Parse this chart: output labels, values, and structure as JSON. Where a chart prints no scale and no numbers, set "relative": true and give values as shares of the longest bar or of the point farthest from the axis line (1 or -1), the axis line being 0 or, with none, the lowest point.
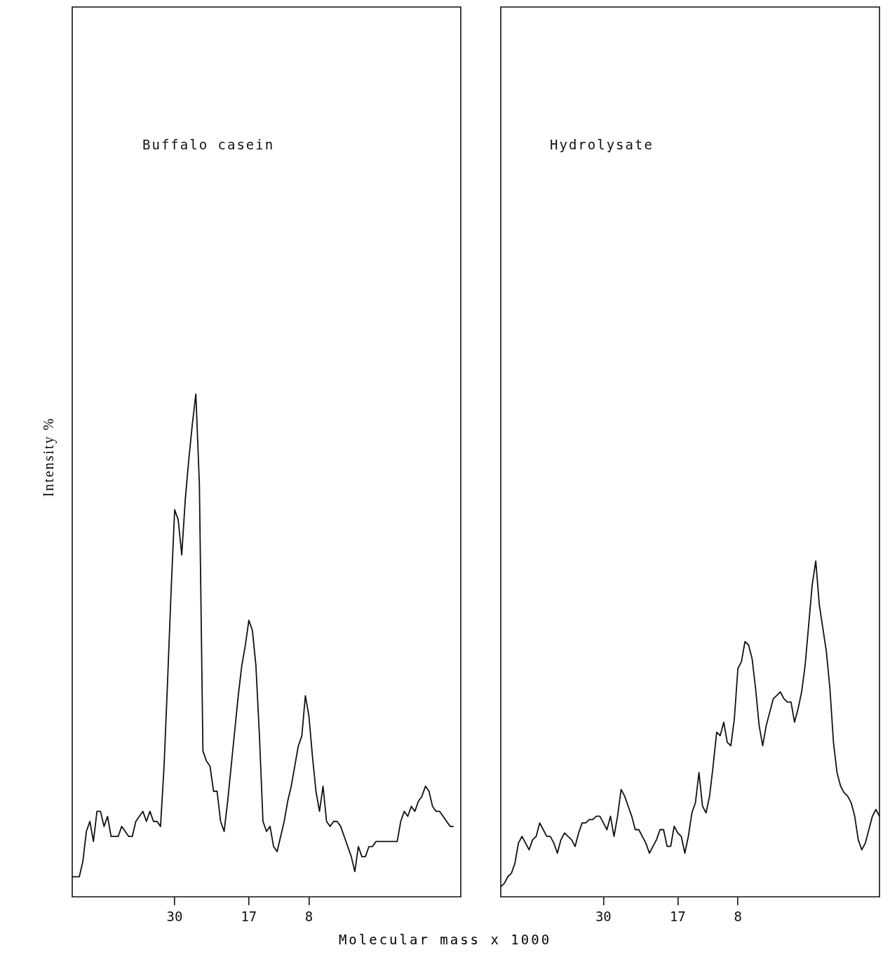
{
  "chart_data": [
    {
      "type": "line",
      "title": "Buffalo casein",
      "ylabel": "Intensity %",
      "xlabel": "Molecular mass x 1000",
      "relative": true,
      "marker": "none",
      "categories": [
        null,
        null,
        null,
        null,
        null,
        null,
        null,
        null,
        null,
        null,
        null,
        null,
        null,
        null,
        null,
        null,
        null,
        null,
        null,
        null,
        null,
        null,
        null,
        null,
        null,
        null,
        null,
        null,
        null,
        "30",
        null,
        null,
        null,
        null,
        null,
        null,
        null,
        null,
        null,
        null,
        null,
        null,
        null,
        null,
        null,
        null,
        null,
        null,
        null,
        null,
        "17",
        null,
        null,
        null,
        null,
        null,
        null,
        null,
        null,
        null,
        null,
        null,
        null,
        null,
        null,
        null,
        null,
        "8",
        null,
        null,
        null,
        null,
        null,
        null,
        null,
        null,
        null,
        null,
        null,
        null,
        null,
        null,
        null,
        null,
        null,
        null,
        null,
        null,
        null,
        null,
        null,
        null,
        null,
        null,
        null,
        null,
        null,
        null,
        null,
        null,
        null,
        null,
        null,
        null,
        null,
        null,
        null,
        null,
        null,
        null,
        null
      ],
      "series": [
        {
          "color": "#111111",
          "values": [
            0.04,
            0.04,
            0.04,
            0.07,
            0.13,
            0.15,
            0.11,
            0.17,
            0.17,
            0.14,
            0.16,
            0.12,
            0.12,
            0.12,
            0.14,
            0.13,
            0.12,
            0.12,
            0.15,
            0.16,
            0.17,
            0.15,
            0.17,
            0.15,
            0.15,
            0.14,
            0.26,
            0.43,
            0.61,
            0.77,
            0.75,
            0.68,
            0.79,
            0.87,
            0.94,
            1,
            0.82,
            0.29,
            0.27,
            0.26,
            0.21,
            0.21,
            0.15,
            0.13,
            0.19,
            0.26,
            0.33,
            0.4,
            0.46,
            0.5,
            0.55,
            0.53,
            0.46,
            0.32,
            0.15,
            0.13,
            0.14,
            0.1,
            0.09,
            0.12,
            0.15,
            0.19,
            0.22,
            0.26,
            0.3,
            0.32,
            0.4,
            0.36,
            0.28,
            0.21,
            0.17,
            0.22,
            0.15,
            0.14,
            0.15,
            0.15,
            0.14,
            0.12,
            0.1,
            0.08,
            0.05,
            0.1,
            0.08,
            0.08,
            0.1,
            0.1,
            0.11,
            0.11,
            0.11,
            0.11,
            0.11,
            0.11,
            0.11,
            0.15,
            0.17,
            0.16,
            0.18,
            0.17,
            0.19,
            0.2,
            0.22,
            0.21,
            0.18,
            0.17,
            0.17,
            0.16,
            0.15,
            0.14,
            0.14,
            null,
            null
          ]
        }
      ]
    },
    {
      "type": "line",
      "title": "Hydrolysate",
      "relative": true,
      "marker": "none",
      "categories": [
        null,
        null,
        null,
        null,
        null,
        null,
        null,
        null,
        null,
        null,
        null,
        null,
        null,
        null,
        null,
        null,
        null,
        null,
        null,
        null,
        null,
        null,
        null,
        null,
        null,
        null,
        null,
        null,
        null,
        "30",
        null,
        null,
        null,
        null,
        null,
        null,
        null,
        null,
        null,
        null,
        null,
        null,
        null,
        null,
        null,
        null,
        null,
        null,
        null,
        null,
        "17",
        null,
        null,
        null,
        null,
        null,
        null,
        null,
        null,
        null,
        null,
        null,
        null,
        null,
        null,
        null,
        null,
        "8",
        null,
        null,
        null,
        null,
        null,
        null,
        null,
        null,
        null,
        null,
        null,
        null,
        null,
        null,
        null,
        null,
        null,
        null,
        null,
        null,
        null,
        null,
        null,
        null,
        null,
        null,
        null,
        null,
        null,
        null,
        null,
        null,
        null,
        null,
        null,
        null,
        null,
        null,
        null,
        null
      ],
      "series": [
        {
          "color": "#111111",
          "values": [
            0.03,
            0.04,
            0.06,
            0.07,
            0.1,
            0.16,
            0.18,
            0.16,
            0.14,
            0.17,
            0.18,
            0.22,
            0.2,
            0.18,
            0.18,
            0.16,
            0.13,
            0.17,
            0.19,
            0.18,
            0.17,
            0.15,
            0.19,
            0.22,
            0.22,
            0.23,
            0.23,
            0.24,
            0.24,
            0.22,
            0.2,
            0.24,
            0.18,
            0.24,
            0.32,
            0.3,
            0.27,
            0.24,
            0.2,
            0.2,
            0.18,
            0.16,
            0.13,
            0.15,
            0.17,
            0.2,
            0.2,
            0.15,
            0.15,
            0.21,
            0.19,
            0.18,
            0.13,
            0.18,
            0.25,
            0.28,
            0.37,
            0.27,
            0.25,
            0.3,
            0.39,
            0.49,
            0.48,
            0.52,
            0.46,
            0.45,
            0.53,
            0.68,
            0.7,
            0.76,
            0.75,
            0.71,
            0.62,
            0.51,
            0.45,
            0.51,
            0.55,
            0.59,
            0.6,
            0.61,
            0.59,
            0.58,
            0.58,
            0.52,
            0.56,
            0.61,
            0.69,
            0.81,
            0.93,
            1,
            0.87,
            0.8,
            0.73,
            0.62,
            0.46,
            0.37,
            0.33,
            0.31,
            0.3,
            0.28,
            0.24,
            0.17,
            0.14,
            0.16,
            0.2,
            0.24,
            0.26,
            0.24
          ]
        }
      ]
    }
  ]
}
